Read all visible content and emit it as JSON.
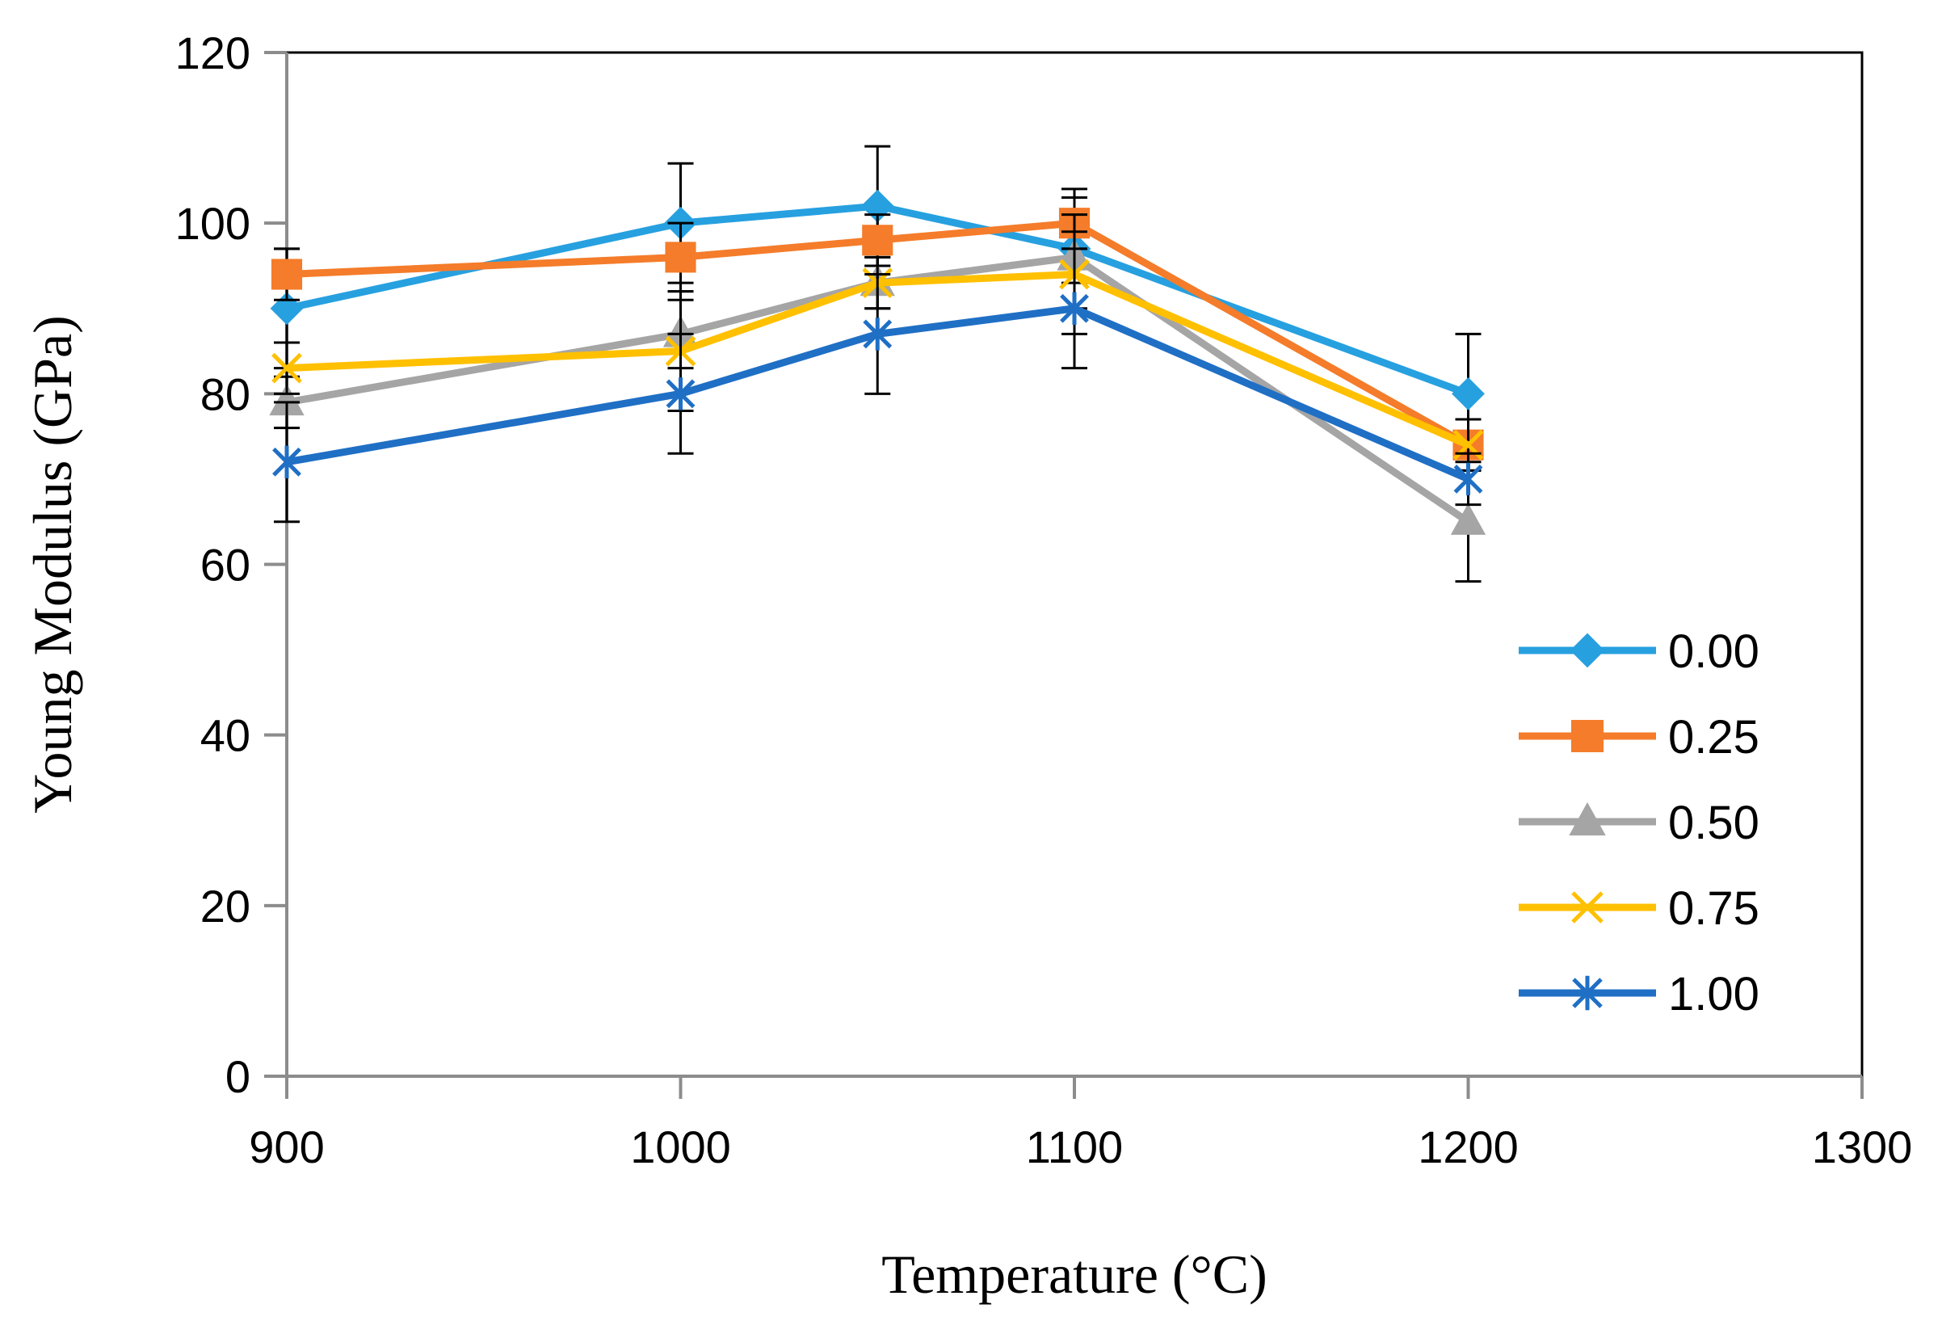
{
  "chart_data": {
    "type": "line",
    "title": "",
    "xlabel": "Temperature (°C)",
    "ylabel": "Young Modulus (GPa)",
    "xlim": [
      900,
      1300
    ],
    "ylim": [
      0,
      120
    ],
    "xticks": [
      900,
      1000,
      1100,
      1200,
      1300
    ],
    "yticks": [
      0,
      20,
      40,
      60,
      80,
      100,
      120
    ],
    "x": [
      900,
      1000,
      1050,
      1100,
      1200
    ],
    "grid": false,
    "legend_position": "bottom-right",
    "series": [
      {
        "name": "0.00",
        "marker": "diamond",
        "color": "#27a0e0",
        "values": [
          90,
          100,
          102,
          97,
          80
        ],
        "errors": [
          7,
          7,
          7,
          7,
          7
        ]
      },
      {
        "name": "0.25",
        "marker": "square",
        "color": "#f47c2a",
        "values": [
          94,
          96,
          98,
          100,
          74
        ],
        "errors": [
          3,
          4,
          3,
          3,
          3
        ]
      },
      {
        "name": "0.50",
        "marker": "triangle",
        "color": "#a5a5a5",
        "values": [
          79,
          87,
          93,
          96,
          65
        ],
        "errors": [
          3,
          4,
          3,
          3,
          7
        ]
      },
      {
        "name": "0.75",
        "marker": "x",
        "color": "#ffc000",
        "values": [
          83,
          85,
          93,
          94,
          74
        ],
        "errors": [
          3,
          7,
          3,
          7,
          3
        ]
      },
      {
        "name": "1.00",
        "marker": "star",
        "color": "#1f6fc5",
        "values": [
          72,
          80,
          87,
          90,
          70
        ],
        "errors": [
          7,
          7,
          7,
          7,
          3
        ]
      }
    ]
  }
}
